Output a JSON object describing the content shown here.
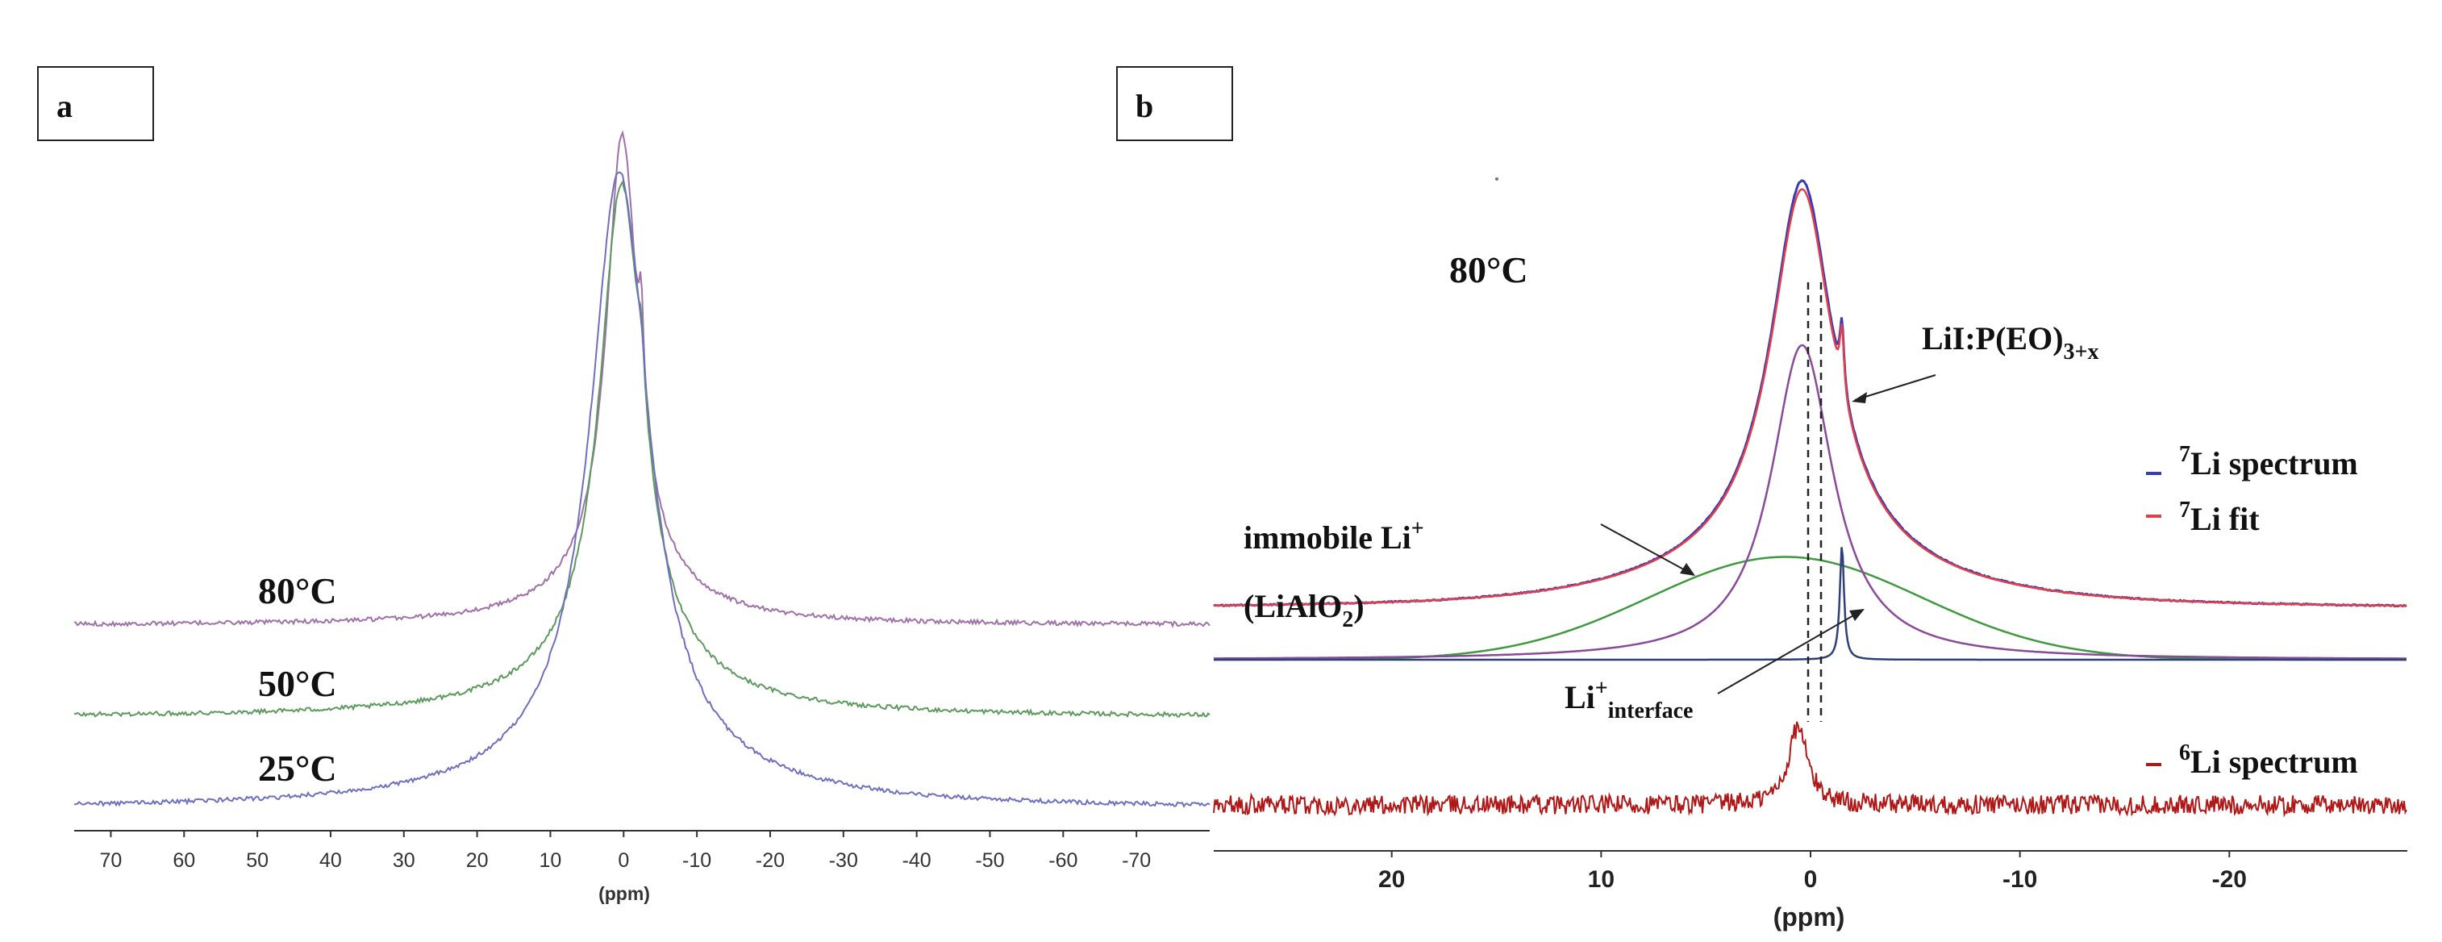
{
  "chart_data": [
    {
      "type": "line",
      "panel_label": "a",
      "xlabel": "(ppm)",
      "ylabel": "",
      "xlim": [
        75,
        -80
      ],
      "x_ticks": [
        "70",
        "60",
        "50",
        "40",
        "30",
        "20",
        "10",
        "0",
        "-10",
        "-20",
        "-30",
        "-40",
        "-50",
        "-60",
        "-70"
      ],
      "x_tick_values": [
        70,
        60,
        50,
        40,
        30,
        20,
        10,
        0,
        -10,
        -20,
        -30,
        -40,
        -50,
        -60,
        -70
      ],
      "series": [
        {
          "name": "80°C",
          "color": "#a070a8",
          "baseline": 0,
          "offset": 1.06,
          "peak_center": 0.2,
          "peak_height": 2.6,
          "peak_width": 2.6,
          "shoulder_center": -2.4,
          "shoulder_height": 0.5,
          "shoulder_width": 0.4
        },
        {
          "name": "50°C",
          "color": "#5d9a5d",
          "baseline": 0,
          "offset": 0.53,
          "peak_center": 0.3,
          "peak_height": 2.85,
          "peak_width": 3.6,
          "shoulder_center": -2.4,
          "shoulder_height": 0.3,
          "shoulder_width": 0.5
        },
        {
          "name": "25°C",
          "color": "#6f6fc0",
          "baseline": 0,
          "offset": 0.0,
          "peak_center": 0.6,
          "peak_height": 3.45,
          "peak_width": 4.8,
          "shoulder_center": -2.4,
          "shoulder_height": 0.12,
          "shoulder_width": 0.5
        }
      ],
      "annotations": [
        "80°C",
        "50°C",
        "25°C"
      ]
    },
    {
      "type": "line",
      "panel_label": "b",
      "xlabel": "(ppm)",
      "ylabel": "",
      "xlim": [
        28.5,
        -28.5
      ],
      "x_ticks": [
        "20",
        "10",
        "0",
        "-10",
        "-20"
      ],
      "x_tick_values": [
        20,
        10,
        0,
        -10,
        -20
      ],
      "temperature": "80°C",
      "legend": [
        "7Li spectrum",
        "7Li fit",
        "6Li spectrum"
      ],
      "series": [
        {
          "name": "7Li spectrum",
          "color": "#3a3ab8",
          "offset": 1.35,
          "components": "sum",
          "peak_center": 0.6,
          "peak_height": 3.1
        },
        {
          "name": "7Li fit",
          "color": "#e0404a",
          "offset": 1.35,
          "components": "sum",
          "peak_center": 0.6,
          "peak_height": 3.05
        },
        {
          "name": "LiI:P(EO)3+x",
          "color": "#8a4a9a",
          "offset": 0.0,
          "peak_center": 0.4,
          "peak_height": 2.6,
          "peak_width": 1.8
        },
        {
          "name": "immobile Li+ (LiAlO2)",
          "color": "#3f9a3f",
          "offset": 0.0,
          "peak_center": 1.2,
          "peak_height": 0.85,
          "peak_width": 6.5
        },
        {
          "name": "Li+ interface",
          "color": "#2f3f7a",
          "offset": 0.0,
          "peak_center": -1.5,
          "peak_height": 0.95,
          "peak_width": 0.12
        },
        {
          "name": "6Li spectrum",
          "color": "#b01818",
          "offset": -0.95,
          "peak_center": 0.6,
          "peak_height": 0.65,
          "peak_width": 0.55
        }
      ],
      "annotations": {
        "temp": "80°C",
        "peo_main": "LiI:P(EO)",
        "peo_sub": "3+x",
        "immobile_line1": "immobile Li",
        "immobile_sup": "+",
        "immobile_line2_a": "(LiAlO",
        "immobile_line2_sub": "2",
        "immobile_line2_b": ")",
        "interface_main": "Li",
        "interface_sup": "+",
        "interface_sub": "interface",
        "legend_7li_spec_sup": "7",
        "legend_7li_spec": "Li spectrum",
        "legend_7li_fit_sup": "7",
        "legend_7li_fit": "Li fit",
        "legend_6li_sup": "6",
        "legend_6li": "Li spectrum"
      }
    }
  ]
}
